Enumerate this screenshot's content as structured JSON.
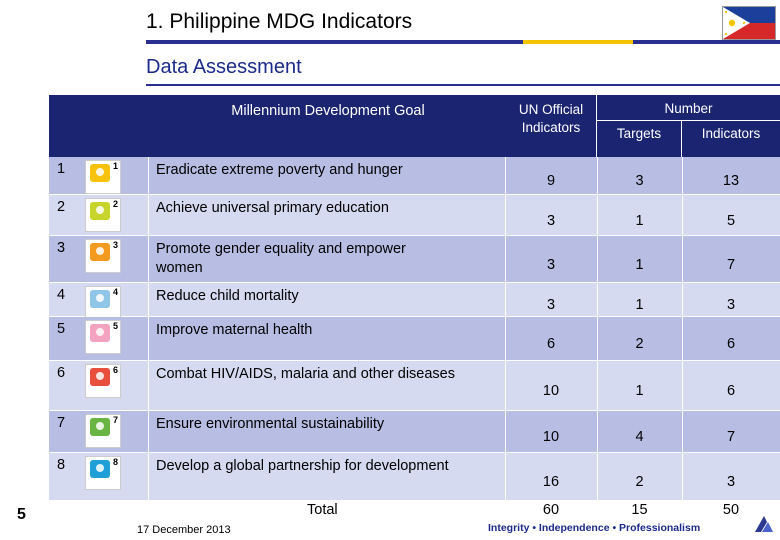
{
  "header": {
    "title": "1. Philippine MDG Indicators",
    "subtitle": "Data Assessment"
  },
  "table": {
    "headers": {
      "goal": "Millennium Development Goal",
      "un_official": "UN Official Indicators",
      "number": "Number",
      "targets": "Targets",
      "indicators": "Indicators"
    },
    "rows": [
      {
        "no": "1",
        "icon_num": "1",
        "icon_color": "#f6c20e",
        "goal": "Eradicate extreme poverty and hunger",
        "un": "9",
        "targets": "3",
        "indicators": "13"
      },
      {
        "no": "2",
        "icon_num": "2",
        "icon_color": "#c6d42c",
        "goal": "Achieve universal primary education",
        "un": "3",
        "targets": "1",
        "indicators": "5"
      },
      {
        "no": "3",
        "icon_num": "3",
        "icon_color": "#f39a1f",
        "goal": "Promote gender equality and empower women",
        "un": "3",
        "targets": "1",
        "indicators": "7"
      },
      {
        "no": "4",
        "icon_num": "4",
        "icon_color": "#8fc6e8",
        "goal": "Reduce child mortality",
        "un": "3",
        "targets": "1",
        "indicators": "3"
      },
      {
        "no": "5",
        "icon_num": "5",
        "icon_color": "#f3a3c0",
        "goal": "Improve maternal health",
        "un": "6",
        "targets": "2",
        "indicators": "6"
      },
      {
        "no": "6",
        "icon_num": "6",
        "icon_color": "#e94f3d",
        "goal": "Combat HIV/AIDS, malaria and other diseases",
        "un": "10",
        "targets": "1",
        "indicators": "6"
      },
      {
        "no": "7",
        "icon_num": "7",
        "icon_color": "#6ab443",
        "goal": "Ensure environmental sustainability",
        "un": "10",
        "targets": "4",
        "indicators": "7"
      },
      {
        "no": "8",
        "icon_num": "8",
        "icon_color": "#1f9fd6",
        "goal": "Develop a global partnership for development",
        "un": "16",
        "targets": "2",
        "indicators": "3"
      }
    ],
    "total": {
      "label": "Total",
      "un": "60",
      "targets": "15",
      "indicators": "50"
    }
  },
  "footer": {
    "page": "5",
    "date": "17 December 2013",
    "motto": "Integrity • Independence • Professionalism"
  },
  "colors": {
    "header_blue": "#2b3890",
    "row_light": "#d6daf0",
    "row_dark": "#b7bde3",
    "accent_yellow": "#f4c400"
  }
}
